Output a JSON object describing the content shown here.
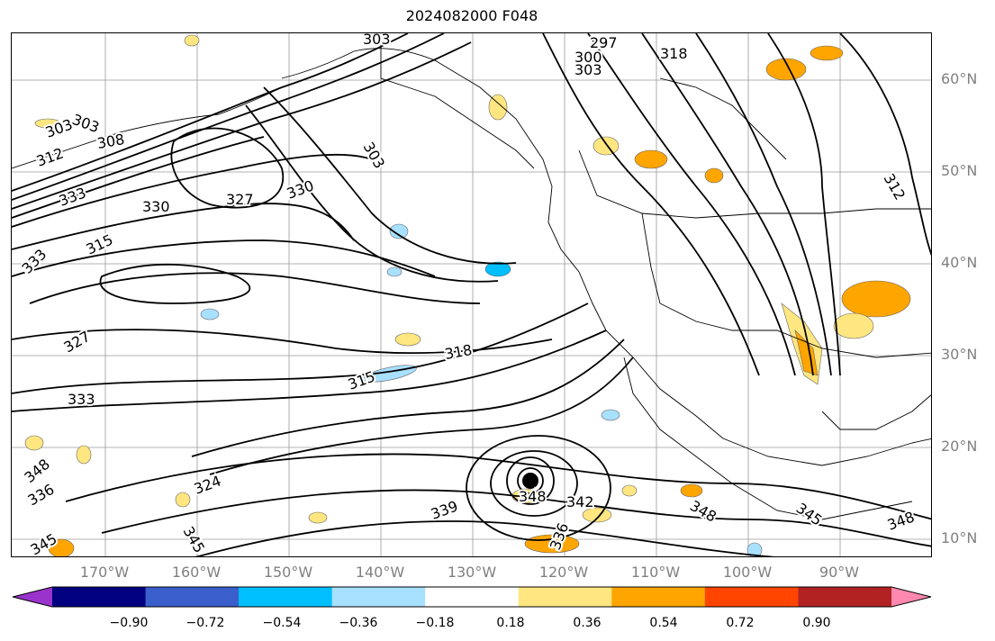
{
  "title": "2024082000 F048",
  "lat_labels": [
    "60°N",
    "50°N",
    "40°N",
    "30°N",
    "20°N",
    "10°N"
  ],
  "lon_labels": [
    "170°W",
    "160°W",
    "150°W",
    "140°W",
    "130°W",
    "120°W",
    "110°W",
    "100°W",
    "90°W"
  ],
  "contour_labels": [
    "303",
    "297",
    "300",
    "303",
    "318",
    "303",
    "303",
    "308",
    "312",
    "333",
    "330",
    "327",
    "330",
    "315",
    "303",
    "333",
    "327",
    "333",
    "315",
    "318",
    "336",
    "339",
    "324",
    "345",
    "348",
    "342",
    "336",
    "348",
    "345",
    "348",
    "312",
    "348",
    "345"
  ],
  "colorbar": {
    "tick_labels": [
      "−0.90",
      "−0.72",
      "−0.54",
      "−0.36",
      "−0.18",
      "0.18",
      "0.36",
      "0.54",
      "0.72",
      "0.90"
    ],
    "colors": [
      "#9933cc",
      "#000080",
      "#3a5fcd",
      "#00bfff",
      "#a8e0ff",
      "#ffffff",
      "#ffe680",
      "#ffa500",
      "#ff4500",
      "#b22222",
      "#ff88b0"
    ]
  }
}
